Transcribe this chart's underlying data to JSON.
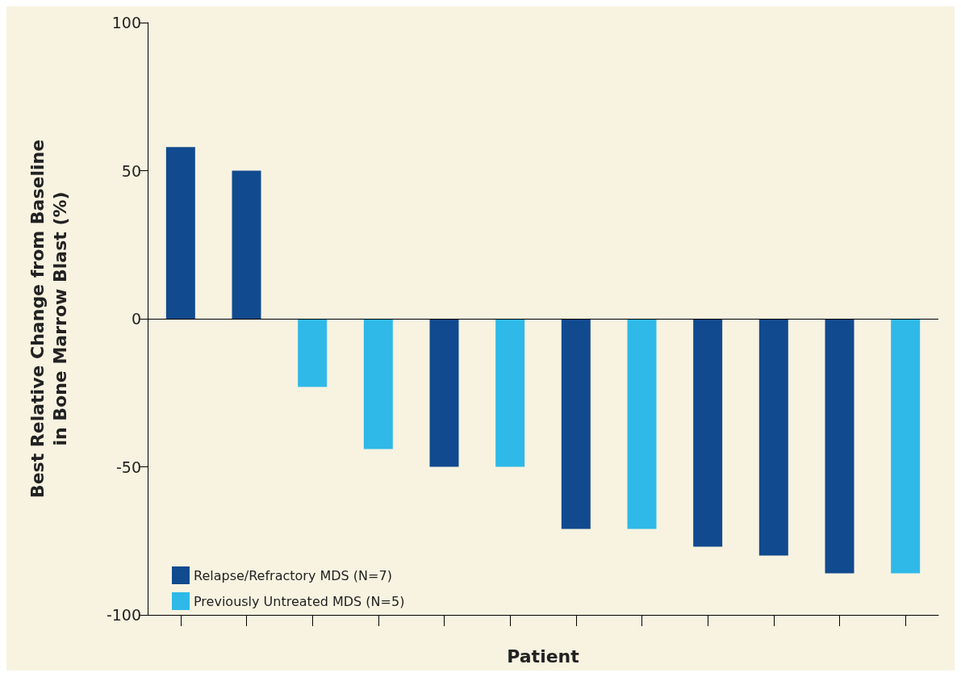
{
  "chart_data": {
    "type": "bar",
    "xlabel": "Patient",
    "ylabel": "Best Relative Change from Baseline\nin Bone Marrow Blast (%)",
    "categories": [
      null,
      null,
      null,
      null,
      null,
      null,
      null,
      null,
      null,
      null,
      null,
      null
    ],
    "series": [
      {
        "name": "Relapse/Refractory MDS (N=7)",
        "color": "#114a8e",
        "values": [
          58,
          50,
          null,
          null,
          -50,
          null,
          -71,
          null,
          -77,
          -80,
          -86,
          null
        ]
      },
      {
        "name": "Previously Untreated MDS (N=5)",
        "color": "#2fb9e8",
        "values": [
          null,
          null,
          -23,
          -44,
          null,
          -50,
          null,
          -71,
          null,
          null,
          null,
          -86
        ]
      }
    ],
    "ylim": [
      -100,
      100
    ],
    "yticks": [
      -100,
      -50,
      0,
      50,
      100
    ],
    "grid": false,
    "legend": "bottom left",
    "ref_lines": [
      {
        "axis": "y",
        "value": 0,
        "color": "#000000"
      }
    ]
  }
}
